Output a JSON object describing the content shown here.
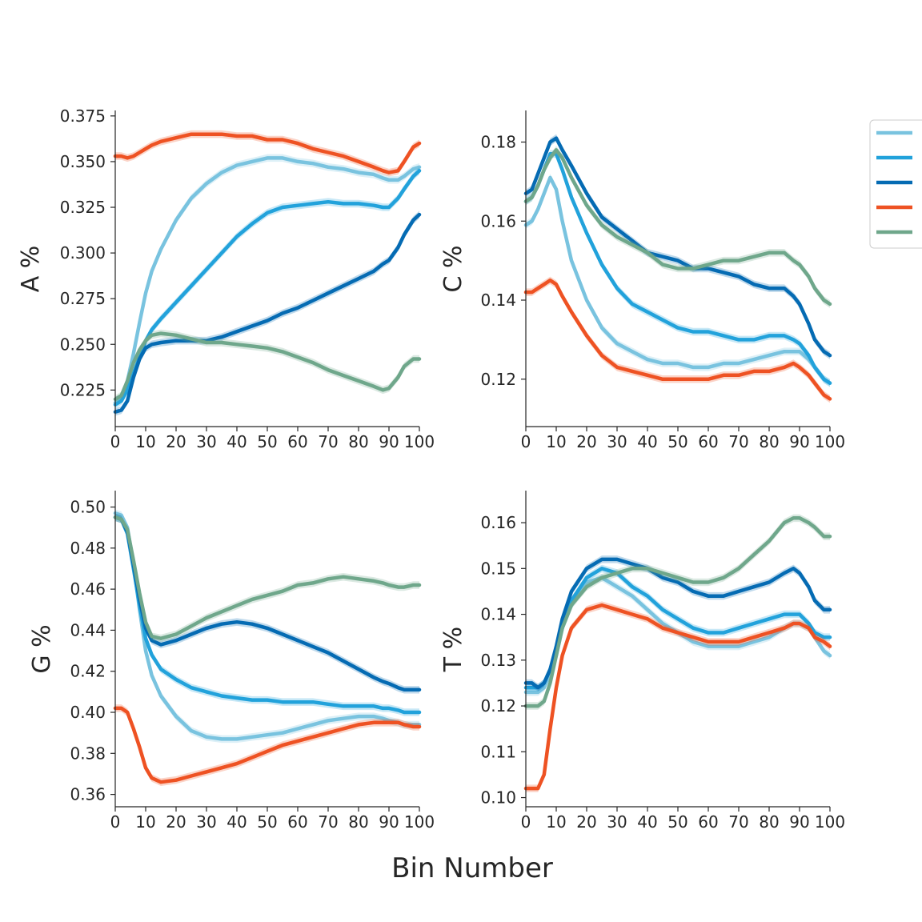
{
  "figure": {
    "xlabel": "Bin Number"
  },
  "colors": {
    "series_1": "#79c3df",
    "series_2": "#22a2db",
    "series_3": "#056bb3",
    "series_4": "#ee5223",
    "series_5": "#6fa78b",
    "axis": "#262626"
  },
  "legend": {
    "placement": "right, partially cut off",
    "labels": [
      "",
      "",
      "",
      "",
      ""
    ]
  },
  "chart_data": [
    {
      "type": "line",
      "ylabel": "A %",
      "xlim": [
        0,
        100
      ],
      "ylim": [
        0.205,
        0.378
      ],
      "xticks": [
        0,
        10,
        20,
        30,
        40,
        50,
        60,
        70,
        80,
        90,
        100
      ],
      "xtick_labels": [
        "0",
        "10",
        "20",
        "30",
        "40",
        "50",
        "60",
        "70",
        "80",
        "90",
        "100"
      ],
      "yticks": [
        0.225,
        0.25,
        0.275,
        0.3,
        0.325,
        0.35,
        0.375
      ],
      "ytick_labels": [
        "0.225",
        "0.250",
        "0.275",
        "0.300",
        "0.325",
        "0.350",
        "0.375"
      ],
      "x": [
        0,
        2,
        4,
        6,
        8,
        10,
        12,
        15,
        20,
        25,
        30,
        35,
        40,
        45,
        50,
        55,
        60,
        65,
        70,
        75,
        80,
        85,
        88,
        90,
        93,
        95,
        98,
        100
      ],
      "series": [
        {
          "values": [
            0.218,
            0.221,
            0.23,
            0.245,
            0.262,
            0.278,
            0.29,
            0.302,
            0.318,
            0.33,
            0.338,
            0.344,
            0.348,
            0.35,
            0.352,
            0.352,
            0.35,
            0.349,
            0.347,
            0.346,
            0.344,
            0.343,
            0.341,
            0.34,
            0.34,
            0.342,
            0.346,
            0.347
          ]
        },
        {
          "values": [
            0.217,
            0.219,
            0.225,
            0.234,
            0.243,
            0.252,
            0.258,
            0.264,
            0.273,
            0.282,
            0.291,
            0.3,
            0.309,
            0.316,
            0.322,
            0.325,
            0.326,
            0.327,
            0.328,
            0.327,
            0.327,
            0.326,
            0.325,
            0.325,
            0.33,
            0.335,
            0.342,
            0.345
          ]
        },
        {
          "values": [
            0.213,
            0.214,
            0.219,
            0.232,
            0.242,
            0.248,
            0.25,
            0.251,
            0.252,
            0.252,
            0.252,
            0.254,
            0.257,
            0.26,
            0.263,
            0.267,
            0.27,
            0.274,
            0.278,
            0.282,
            0.286,
            0.29,
            0.294,
            0.296,
            0.303,
            0.31,
            0.318,
            0.321
          ]
        },
        {
          "values": [
            0.353,
            0.353,
            0.352,
            0.353,
            0.355,
            0.357,
            0.359,
            0.361,
            0.363,
            0.365,
            0.365,
            0.365,
            0.364,
            0.364,
            0.362,
            0.362,
            0.36,
            0.357,
            0.355,
            0.353,
            0.35,
            0.347,
            0.345,
            0.344,
            0.345,
            0.35,
            0.358,
            0.36
          ]
        },
        {
          "values": [
            0.22,
            0.222,
            0.23,
            0.24,
            0.247,
            0.252,
            0.255,
            0.256,
            0.255,
            0.253,
            0.251,
            0.251,
            0.25,
            0.249,
            0.248,
            0.246,
            0.243,
            0.24,
            0.236,
            0.233,
            0.23,
            0.227,
            0.225,
            0.226,
            0.232,
            0.238,
            0.242,
            0.242
          ]
        }
      ]
    },
    {
      "type": "line",
      "ylabel": "C %",
      "xlim": [
        0,
        100
      ],
      "ylim": [
        0.108,
        0.188
      ],
      "xticks": [
        0,
        10,
        20,
        30,
        40,
        50,
        60,
        70,
        80,
        90,
        100
      ],
      "xtick_labels": [
        "0",
        "10",
        "20",
        "30",
        "40",
        "50",
        "60",
        "70",
        "80",
        "90",
        "100"
      ],
      "yticks": [
        0.12,
        0.14,
        0.16,
        0.18
      ],
      "ytick_labels": [
        "0.12",
        "0.14",
        "0.16",
        "0.18"
      ],
      "x": [
        0,
        2,
        4,
        6,
        8,
        10,
        12,
        15,
        20,
        25,
        30,
        35,
        40,
        45,
        50,
        55,
        60,
        65,
        70,
        75,
        80,
        85,
        88,
        90,
        93,
        95,
        98,
        100
      ],
      "series": [
        {
          "values": [
            0.159,
            0.16,
            0.163,
            0.167,
            0.171,
            0.168,
            0.16,
            0.15,
            0.14,
            0.133,
            0.129,
            0.127,
            0.125,
            0.124,
            0.124,
            0.123,
            0.123,
            0.124,
            0.124,
            0.125,
            0.126,
            0.127,
            0.127,
            0.127,
            0.125,
            0.123,
            0.12,
            0.119
          ]
        },
        {
          "values": [
            0.165,
            0.166,
            0.169,
            0.173,
            0.177,
            0.177,
            0.173,
            0.166,
            0.157,
            0.149,
            0.143,
            0.139,
            0.137,
            0.135,
            0.133,
            0.132,
            0.132,
            0.131,
            0.13,
            0.13,
            0.131,
            0.131,
            0.13,
            0.129,
            0.126,
            0.123,
            0.12,
            0.119
          ]
        },
        {
          "values": [
            0.167,
            0.168,
            0.172,
            0.176,
            0.18,
            0.181,
            0.178,
            0.174,
            0.167,
            0.161,
            0.158,
            0.155,
            0.152,
            0.151,
            0.15,
            0.148,
            0.148,
            0.147,
            0.146,
            0.144,
            0.143,
            0.143,
            0.141,
            0.139,
            0.134,
            0.13,
            0.127,
            0.126
          ]
        },
        {
          "values": [
            0.142,
            0.142,
            0.143,
            0.144,
            0.145,
            0.144,
            0.141,
            0.137,
            0.131,
            0.126,
            0.123,
            0.122,
            0.121,
            0.12,
            0.12,
            0.12,
            0.12,
            0.121,
            0.121,
            0.122,
            0.122,
            0.123,
            0.124,
            0.123,
            0.121,
            0.119,
            0.116,
            0.115
          ]
        },
        {
          "values": [
            0.165,
            0.166,
            0.169,
            0.173,
            0.176,
            0.178,
            0.176,
            0.171,
            0.164,
            0.159,
            0.156,
            0.154,
            0.152,
            0.149,
            0.148,
            0.148,
            0.149,
            0.15,
            0.15,
            0.151,
            0.152,
            0.152,
            0.15,
            0.149,
            0.146,
            0.143,
            0.14,
            0.139
          ]
        }
      ]
    },
    {
      "type": "line",
      "ylabel": "G %",
      "xlim": [
        0,
        100
      ],
      "ylim": [
        0.354,
        0.508
      ],
      "xticks": [
        0,
        10,
        20,
        30,
        40,
        50,
        60,
        70,
        80,
        90,
        100
      ],
      "xtick_labels": [
        "0",
        "10",
        "20",
        "30",
        "40",
        "50",
        "60",
        "70",
        "80",
        "90",
        "100"
      ],
      "yticks": [
        0.36,
        0.38,
        0.4,
        0.42,
        0.44,
        0.46,
        0.48,
        0.5
      ],
      "ytick_labels": [
        "0.36",
        "0.38",
        "0.40",
        "0.42",
        "0.44",
        "0.46",
        "0.48",
        "0.50"
      ],
      "x": [
        0,
        2,
        4,
        6,
        8,
        10,
        12,
        15,
        20,
        25,
        30,
        35,
        40,
        45,
        50,
        55,
        60,
        65,
        70,
        75,
        80,
        85,
        88,
        90,
        93,
        95,
        98,
        100
      ],
      "series": [
        {
          "values": [
            0.497,
            0.496,
            0.49,
            0.472,
            0.45,
            0.43,
            0.418,
            0.408,
            0.398,
            0.391,
            0.388,
            0.387,
            0.387,
            0.388,
            0.389,
            0.39,
            0.392,
            0.394,
            0.396,
            0.397,
            0.398,
            0.398,
            0.397,
            0.396,
            0.395,
            0.394,
            0.394,
            0.394
          ]
        },
        {
          "values": [
            0.495,
            0.494,
            0.487,
            0.47,
            0.452,
            0.436,
            0.428,
            0.421,
            0.416,
            0.412,
            0.41,
            0.408,
            0.407,
            0.406,
            0.406,
            0.405,
            0.405,
            0.405,
            0.404,
            0.403,
            0.403,
            0.403,
            0.402,
            0.402,
            0.401,
            0.4,
            0.4,
            0.4
          ]
        },
        {
          "values": [
            0.495,
            0.494,
            0.488,
            0.472,
            0.455,
            0.441,
            0.435,
            0.433,
            0.435,
            0.438,
            0.441,
            0.443,
            0.444,
            0.443,
            0.441,
            0.438,
            0.435,
            0.432,
            0.429,
            0.425,
            0.421,
            0.417,
            0.415,
            0.414,
            0.412,
            0.411,
            0.411,
            0.411
          ]
        },
        {
          "values": [
            0.402,
            0.402,
            0.4,
            0.392,
            0.383,
            0.373,
            0.368,
            0.366,
            0.367,
            0.369,
            0.371,
            0.373,
            0.375,
            0.378,
            0.381,
            0.384,
            0.386,
            0.388,
            0.39,
            0.392,
            0.394,
            0.395,
            0.395,
            0.395,
            0.395,
            0.394,
            0.393,
            0.393
          ]
        },
        {
          "values": [
            0.495,
            0.494,
            0.489,
            0.474,
            0.458,
            0.444,
            0.437,
            0.436,
            0.438,
            0.442,
            0.446,
            0.449,
            0.452,
            0.455,
            0.457,
            0.459,
            0.462,
            0.463,
            0.465,
            0.466,
            0.465,
            0.464,
            0.463,
            0.462,
            0.461,
            0.461,
            0.462,
            0.462
          ]
        }
      ]
    },
    {
      "type": "line",
      "ylabel": "T %",
      "xlim": [
        0,
        100
      ],
      "ylim": [
        0.098,
        0.167
      ],
      "xticks": [
        0,
        10,
        20,
        30,
        40,
        50,
        60,
        70,
        80,
        90,
        100
      ],
      "xtick_labels": [
        "0",
        "10",
        "20",
        "30",
        "40",
        "50",
        "60",
        "70",
        "80",
        "90",
        "100"
      ],
      "yticks": [
        0.1,
        0.11,
        0.12,
        0.13,
        0.14,
        0.15,
        0.16
      ],
      "ytick_labels": [
        "0.10",
        "0.11",
        "0.12",
        "0.13",
        "0.14",
        "0.15",
        "0.16"
      ],
      "x": [
        0,
        2,
        4,
        6,
        8,
        10,
        12,
        15,
        20,
        25,
        30,
        35,
        40,
        45,
        50,
        55,
        60,
        65,
        70,
        75,
        80,
        85,
        88,
        90,
        93,
        95,
        98,
        100
      ],
      "series": [
        {
          "values": [
            0.123,
            0.123,
            0.123,
            0.124,
            0.127,
            0.131,
            0.137,
            0.142,
            0.147,
            0.148,
            0.146,
            0.144,
            0.141,
            0.138,
            0.136,
            0.134,
            0.133,
            0.133,
            0.133,
            0.134,
            0.135,
            0.137,
            0.138,
            0.138,
            0.137,
            0.135,
            0.132,
            0.131
          ]
        },
        {
          "values": [
            0.124,
            0.124,
            0.124,
            0.125,
            0.128,
            0.132,
            0.137,
            0.143,
            0.148,
            0.15,
            0.149,
            0.146,
            0.144,
            0.141,
            0.139,
            0.137,
            0.136,
            0.136,
            0.137,
            0.138,
            0.139,
            0.14,
            0.14,
            0.14,
            0.138,
            0.136,
            0.135,
            0.135
          ]
        },
        {
          "values": [
            0.125,
            0.125,
            0.124,
            0.125,
            0.128,
            0.133,
            0.139,
            0.145,
            0.15,
            0.152,
            0.152,
            0.151,
            0.15,
            0.148,
            0.147,
            0.145,
            0.144,
            0.144,
            0.145,
            0.146,
            0.147,
            0.149,
            0.15,
            0.149,
            0.146,
            0.143,
            0.141,
            0.141
          ]
        },
        {
          "values": [
            0.102,
            0.102,
            0.102,
            0.105,
            0.115,
            0.124,
            0.131,
            0.137,
            0.141,
            0.142,
            0.141,
            0.14,
            0.139,
            0.137,
            0.136,
            0.135,
            0.134,
            0.134,
            0.134,
            0.135,
            0.136,
            0.137,
            0.138,
            0.138,
            0.137,
            0.135,
            0.134,
            0.133
          ]
        },
        {
          "values": [
            0.12,
            0.12,
            0.12,
            0.121,
            0.125,
            0.131,
            0.137,
            0.142,
            0.146,
            0.148,
            0.149,
            0.15,
            0.15,
            0.149,
            0.148,
            0.147,
            0.147,
            0.148,
            0.15,
            0.153,
            0.156,
            0.16,
            0.161,
            0.161,
            0.16,
            0.159,
            0.157,
            0.157
          ]
        }
      ]
    }
  ]
}
